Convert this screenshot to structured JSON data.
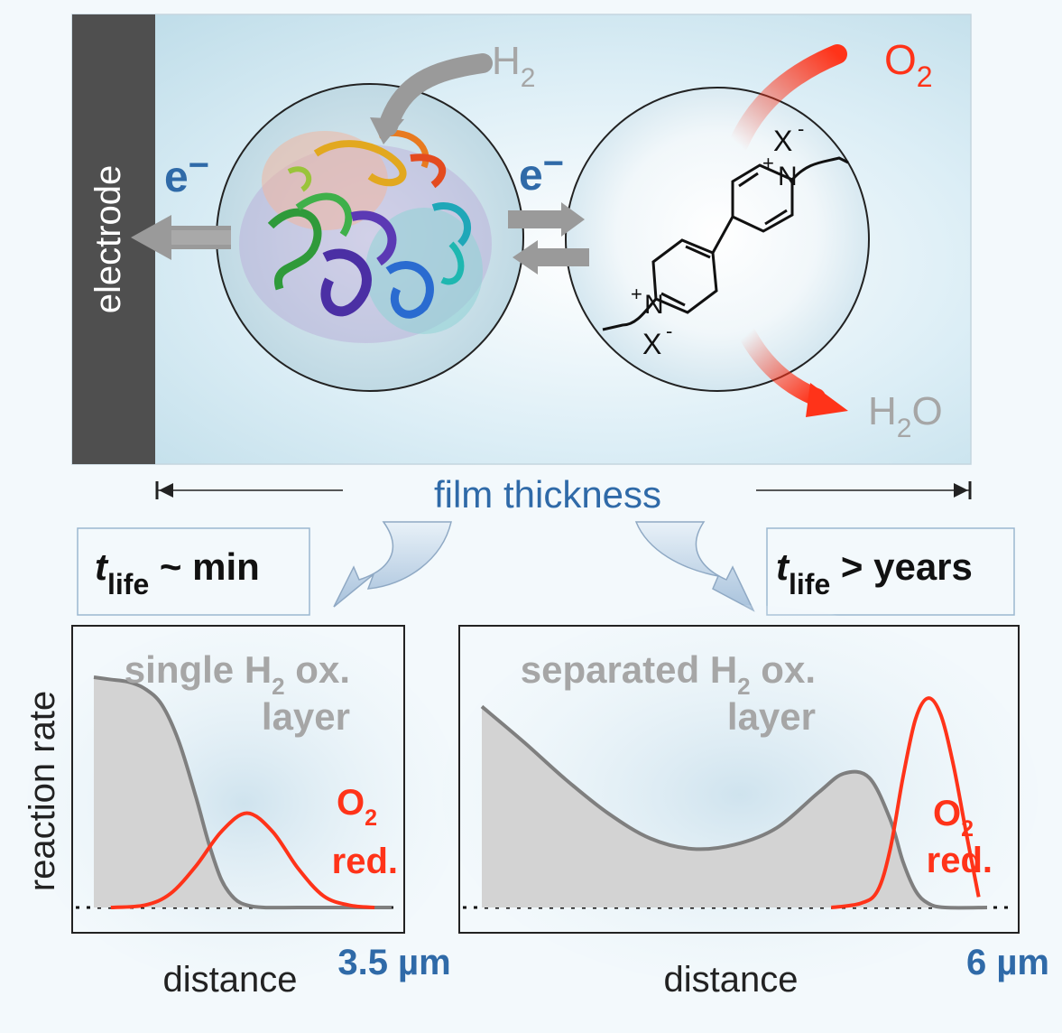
{
  "top_panel": {
    "electrode_label": "electrode",
    "electron_left": "e",
    "electron_right": "e",
    "electron_charge": "−",
    "h2": {
      "base": "H",
      "sub": "2"
    },
    "o2": {
      "base": "O",
      "sub": "2"
    },
    "h2o": {
      "pre": "H",
      "sub": "2",
      "post": "O"
    },
    "viologen": {
      "counterion_top": "X",
      "counterion_bottom": "X",
      "anion_charge": "-",
      "nitrogen": "N",
      "cation_charge": "+"
    }
  },
  "film_thickness_label": "film thickness",
  "lifetime_left": {
    "t": "t",
    "sub": "life",
    "rest": " ~ min"
  },
  "lifetime_right": {
    "t": "t",
    "sub": "life",
    "rest": " > years"
  },
  "shared_y_label": "reaction rate",
  "colors": {
    "electrode": "#4f4f4f",
    "blue_text": "#2f6aa8",
    "red": "#ff3319",
    "gray_text": "#a6a6a6",
    "fill_gray": "#d3d3d3",
    "curve_gray": "#7f7f7f"
  },
  "chart_data": [
    {
      "type": "area",
      "panel": "left",
      "title_lines": [
        {
          "pre": "single H",
          "sub": "2",
          "post": " ox."
        },
        {
          "pre": "layer",
          "sub": "",
          "post": ""
        }
      ],
      "xlabel": "distance",
      "x_end_label": "3.5 µm",
      "ylabel": "reaction rate",
      "xlim": [
        0,
        3.5
      ],
      "ylim": [
        0,
        1
      ],
      "series": [
        {
          "name": "single H2 ox. layer",
          "color": "#7f7f7f",
          "x": [
            0,
            0.2,
            0.4,
            0.6,
            0.8,
            1.0,
            1.2,
            1.35,
            1.5,
            1.65,
            1.8,
            2.0,
            2.4,
            3.0,
            3.5
          ],
          "y": [
            1.0,
            0.99,
            0.98,
            0.95,
            0.88,
            0.72,
            0.48,
            0.28,
            0.12,
            0.04,
            0.01,
            0.0,
            0.0,
            0.0,
            0.0
          ]
        },
        {
          "name": "O2 red.",
          "color": "#ff3319",
          "x": [
            0.2,
            0.6,
            0.9,
            1.2,
            1.5,
            1.8,
            2.1,
            2.4,
            2.7,
            3.0,
            3.3
          ],
          "y": [
            0.0,
            0.01,
            0.06,
            0.18,
            0.33,
            0.41,
            0.33,
            0.17,
            0.05,
            0.01,
            0.0
          ]
        }
      ],
      "series_labels": [
        {
          "pre": "O",
          "sub": "2",
          "post": ""
        },
        {
          "pre": "red.",
          "sub": "",
          "post": ""
        }
      ],
      "baseline": "dotted"
    },
    {
      "type": "area",
      "panel": "right",
      "title_lines": [
        {
          "pre": "separated H",
          "sub": "2",
          "post": " ox."
        },
        {
          "pre": "layer",
          "sub": "",
          "post": ""
        }
      ],
      "xlabel": "distance",
      "x_end_label": "6 µm",
      "xlim": [
        0,
        6
      ],
      "ylim": [
        0,
        1.1
      ],
      "series": [
        {
          "name": "separated H2 ox. layer",
          "color": "#7f7f7f",
          "x": [
            0,
            0.5,
            1.0,
            1.5,
            2.0,
            2.5,
            3.0,
            3.5,
            4.0,
            4.3,
            4.6,
            4.85,
            5.0,
            5.15,
            5.3,
            5.5,
            6.0
          ],
          "y": [
            0.96,
            0.79,
            0.61,
            0.45,
            0.33,
            0.28,
            0.3,
            0.38,
            0.55,
            0.64,
            0.62,
            0.42,
            0.22,
            0.08,
            0.02,
            0.0,
            0.0
          ]
        },
        {
          "name": "O2 red.",
          "color": "#ff3319",
          "x": [
            4.15,
            4.5,
            4.7,
            4.85,
            5.0,
            5.15,
            5.3,
            5.45,
            5.6,
            5.75,
            5.9
          ],
          "y": [
            0.0,
            0.02,
            0.08,
            0.28,
            0.62,
            0.9,
            1.0,
            0.92,
            0.68,
            0.36,
            0.05
          ]
        }
      ],
      "series_labels": [
        {
          "pre": "O",
          "sub": "2",
          "post": ""
        },
        {
          "pre": "red.",
          "sub": "",
          "post": ""
        }
      ],
      "baseline": "dotted"
    }
  ]
}
